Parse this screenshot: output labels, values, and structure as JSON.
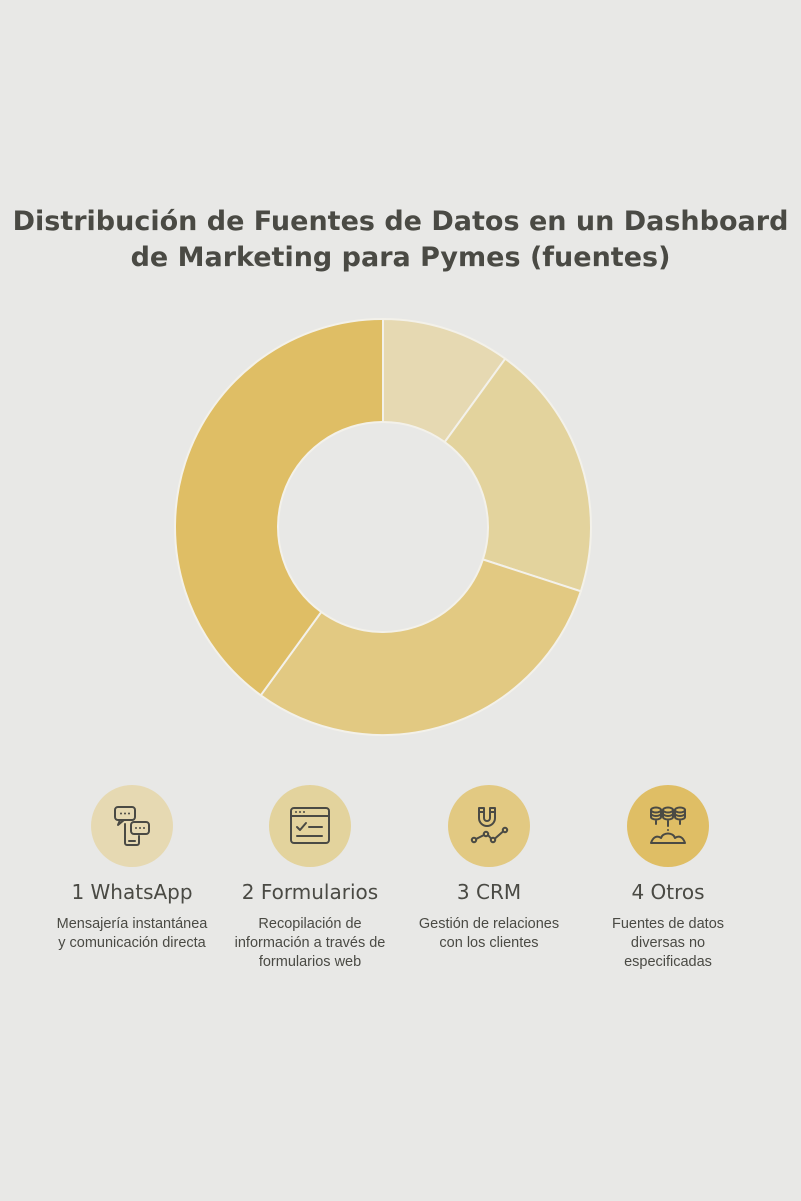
{
  "title": "Distribución de Fuentes de Datos en un Dashboard de Marketing para Pymes (fuentes)",
  "chart_data": {
    "type": "pie",
    "categories": [
      "WhatsApp",
      "Formularios",
      "CRM",
      "Otros"
    ],
    "values": [
      10,
      20,
      30,
      40
    ],
    "donut": true,
    "colors": [
      "#e6d9b2",
      "#e3d39d",
      "#e2c982",
      "#dfbe65"
    ],
    "legend_position": "bottom"
  },
  "legend": [
    {
      "label": "1 WhatsApp",
      "description": "Mensajería instantánea y comunicación directa",
      "icon": "chat-phone-icon",
      "color": "#e6d9b2"
    },
    {
      "label": "2 Formularios",
      "description": "Recopilación de información a través de formularios web",
      "icon": "web-form-icon",
      "color": "#e3d39d"
    },
    {
      "label": "3 CRM",
      "description": "Gestión de relaciones con los clientes",
      "icon": "magnet-chart-icon",
      "color": "#e2c982"
    },
    {
      "label": "4 Otros",
      "description": "Fuentes de datos diversas no especificadas",
      "icon": "database-icon",
      "color": "#dfbe65"
    }
  ]
}
